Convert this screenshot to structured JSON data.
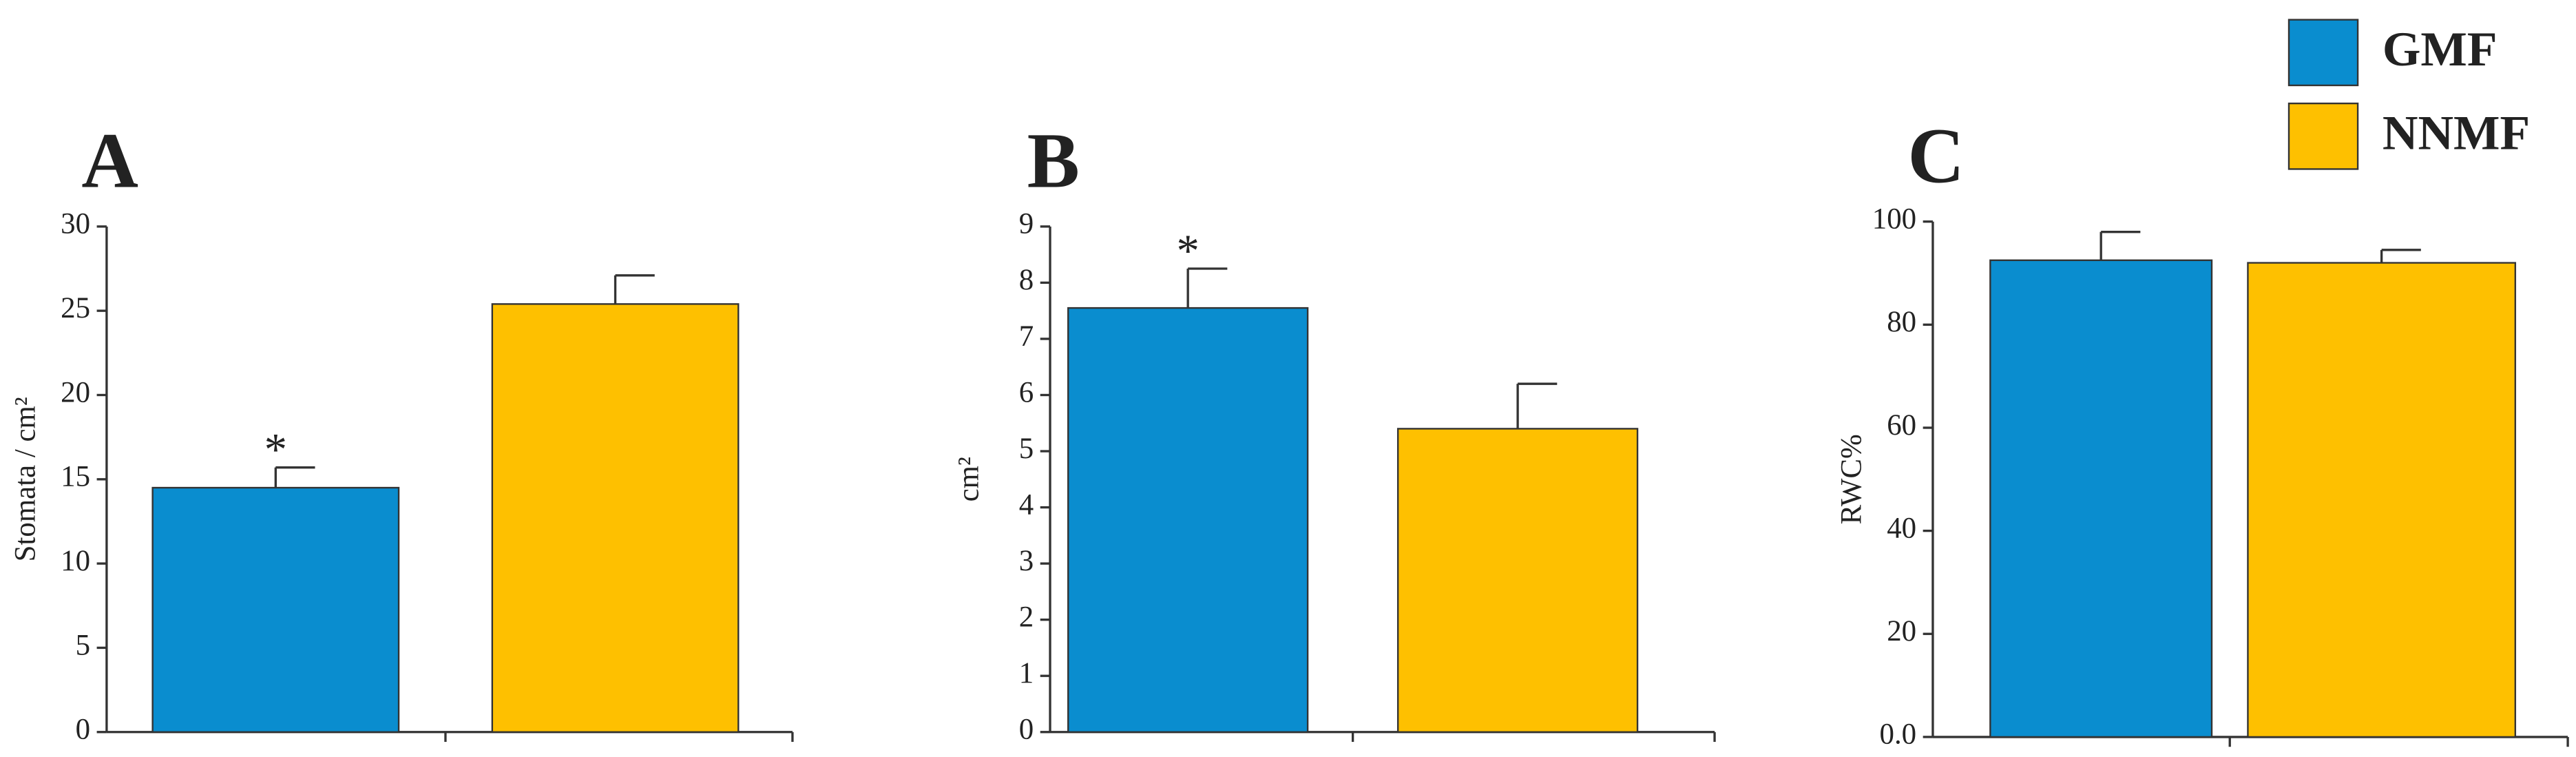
{
  "chart_data": [
    {
      "type": "bar",
      "title": "A",
      "y_label": "Stomata / cm²",
      "ylim": [
        0,
        30
      ],
      "yticks": [
        0,
        5,
        10,
        15,
        20,
        25,
        30
      ],
      "series": [
        {
          "name": "GMF",
          "color": "#0a8dcf",
          "values": [
            14.5
          ],
          "errors": [
            1.2
          ]
        },
        {
          "name": "NNMF",
          "color": "#fec000",
          "values": [
            25.4
          ],
          "errors": [
            1.7
          ]
        }
      ],
      "annotations": [
        {
          "text": "*",
          "series": "GMF"
        }
      ]
    },
    {
      "type": "bar",
      "title": "B",
      "y_label": "cm²",
      "ylim": [
        0,
        9
      ],
      "yticks": [
        0,
        1,
        2,
        3,
        4,
        5,
        6,
        7,
        8,
        9
      ],
      "series": [
        {
          "name": "GMF",
          "color": "#0a8dcf",
          "values": [
            7.55
          ],
          "errors": [
            0.7
          ]
        },
        {
          "name": "NNMF",
          "color": "#fec000",
          "values": [
            5.4
          ],
          "errors": [
            0.8
          ]
        }
      ],
      "annotations": [
        {
          "text": "*",
          "series": "GMF"
        }
      ]
    },
    {
      "type": "bar",
      "title": "C",
      "y_label": "RWC%",
      "ylim": [
        0,
        100
      ],
      "yticks": [
        {
          "value": 0,
          "label": "0.0"
        },
        20,
        40,
        60,
        80,
        100
      ],
      "series": [
        {
          "name": "GMF",
          "color": "#0a8dcf",
          "values": [
            92.5
          ],
          "errors": [
            5.5
          ]
        },
        {
          "name": "NNMF",
          "color": "#fec000",
          "values": [
            92
          ],
          "errors": [
            2.5
          ]
        }
      ]
    }
  ]
}
